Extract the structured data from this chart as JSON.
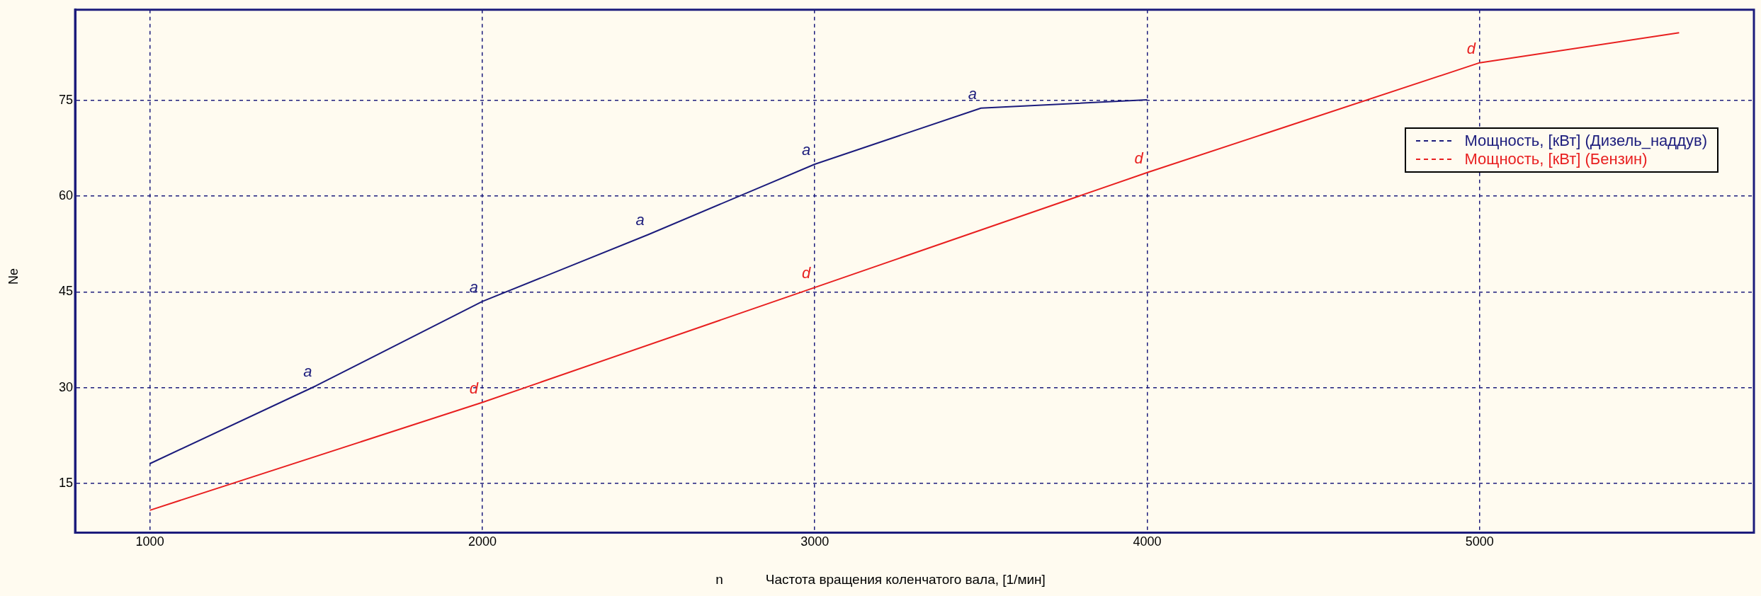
{
  "chart_data": {
    "type": "line",
    "xlabel": "n",
    "ylabel": "Ne",
    "annotations": [
      "Частота вращения коленчатого вала, [1/мин]",
      {
        "text": "a",
        "x": 1500,
        "y": 30.3
      },
      {
        "text": "a",
        "x": 2000,
        "y": 43.5
      },
      {
        "text": "a",
        "x": 2500,
        "y": 54
      },
      {
        "text": "a",
        "x": 3000,
        "y": 65
      },
      {
        "text": "a",
        "x": 3500,
        "y": 73.8
      },
      {
        "text": "d",
        "x": 2000,
        "y": 27.7
      },
      {
        "text": "d",
        "x": 3000,
        "y": 45.7
      },
      {
        "text": "d",
        "x": 4000,
        "y": 63.7
      },
      {
        "text": "d",
        "x": 5000,
        "y": 80.9
      }
    ],
    "series": [
      {
        "name": "Мощность, [кВт] (Дизель_наддув)",
        "color": "#1c1c7c",
        "x": [
          1000,
          1500,
          2000,
          2500,
          3000,
          3500,
          4000
        ],
        "values": [
          18.1,
          30.3,
          43.5,
          54,
          65,
          73.8,
          75.1
        ]
      },
      {
        "name": "Мощность, [кВт] (Бензин)",
        "color": "#e82020",
        "x": [
          1000,
          2000,
          3000,
          4000,
          5000,
          5600
        ],
        "values": [
          10.8,
          27.7,
          45.7,
          63.7,
          80.9,
          85.6
        ]
      }
    ],
    "xlim": [
      775,
      5825
    ],
    "ylim": [
      7.3,
      89.2
    ],
    "xticks": [
      1000,
      2000,
      3000,
      4000,
      5000
    ],
    "yticks": [
      15,
      30,
      45,
      60,
      75
    ],
    "grid": true,
    "legend": "top right",
    "marker": "none",
    "line_style": "solid"
  }
}
